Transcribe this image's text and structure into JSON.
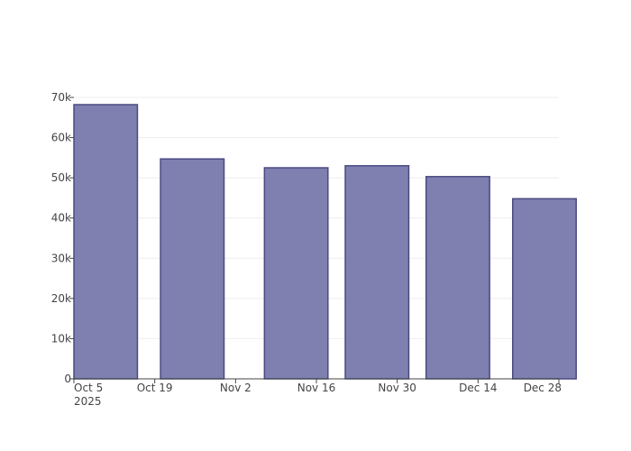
{
  "chart_data": {
    "type": "bar",
    "x_axis_type": "date",
    "x_range": [
      "2025-10-05",
      "2025-12-28"
    ],
    "ylim": [
      0,
      70000
    ],
    "y_ticks": [
      0,
      10000,
      20000,
      30000,
      40000,
      50000,
      60000,
      70000
    ],
    "y_tick_labels": [
      "0",
      "10k",
      "20k",
      "30k",
      "40k",
      "50k",
      "60k",
      "70k"
    ],
    "x_ticks": [
      "2025-10-05",
      "2025-10-19",
      "2025-11-02",
      "2025-11-16",
      "2025-11-30",
      "2025-12-14",
      "2025-12-28"
    ],
    "x_tick_labels": [
      "Oct 5",
      "Oct 19",
      "Nov 2",
      "Nov 16",
      "Nov 30",
      "Dec 14",
      "Dec 28"
    ],
    "x_tick_year_label": "2025",
    "bars": [
      {
        "start": "2025-10-05",
        "end": "2025-10-16",
        "value": 68200
      },
      {
        "start": "2025-10-20",
        "end": "2025-10-31",
        "value": 54700
      },
      {
        "start": "2025-11-07",
        "end": "2025-11-18",
        "value": 52500
      },
      {
        "start": "2025-11-21",
        "end": "2025-12-02",
        "value": 53000
      },
      {
        "start": "2025-12-05",
        "end": "2025-12-16",
        "value": 50300
      },
      {
        "start": "2025-12-20",
        "end": "2025-12-31",
        "value": 44800
      }
    ],
    "grid": true,
    "bar_fill": "#7f7fb0",
    "bar_stroke": "#4a4a82",
    "axis_color": "#444444",
    "grid_color": "#eeeeee"
  }
}
